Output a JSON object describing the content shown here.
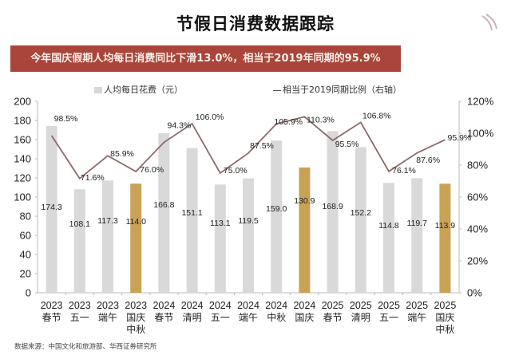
{
  "chart_data": {
    "type": "bar",
    "title": "节假日消费数据跟踪",
    "subtitle": "今年国庆假期人均每日消费同比下滑13.0%，相当于2019年同期的95.9%",
    "categories": [
      [
        "2023",
        "春节"
      ],
      [
        "2023",
        "五一"
      ],
      [
        "2023",
        "端午"
      ],
      [
        "2023",
        "国庆",
        "中秋"
      ],
      [
        "2024",
        "春节"
      ],
      [
        "2024",
        "清明"
      ],
      [
        "2024",
        "五一"
      ],
      [
        "2024",
        "端午"
      ],
      [
        "2024",
        "中秋"
      ],
      [
        "2024",
        "国庆"
      ],
      [
        "2025",
        "春节"
      ],
      [
        "2025",
        "清明"
      ],
      [
        "2025",
        "五一"
      ],
      [
        "2025",
        "端午"
      ],
      [
        "2025",
        "国庆",
        "中秋"
      ]
    ],
    "series": [
      {
        "name": "人均每日花费（元）",
        "type": "bar",
        "axis": "left",
        "values": [
          174.3,
          108.1,
          117.3,
          114.0,
          166.8,
          151.1,
          113.1,
          119.5,
          159.0,
          130.9,
          168.9,
          152.2,
          114.8,
          119.7,
          113.9
        ],
        "labels": [
          "174.3",
          "108.1",
          "117.3",
          "114.0",
          "166.8",
          "151.1",
          "113.1",
          "119.5",
          "159.0",
          "130.9",
          "168.9",
          "152.2",
          "114.8",
          "119.7",
          "113.9"
        ],
        "highlight": [
          false,
          false,
          false,
          true,
          false,
          false,
          false,
          false,
          false,
          true,
          false,
          false,
          false,
          false,
          true
        ]
      },
      {
        "name": "相当于2019同期比例（右轴）",
        "type": "line",
        "axis": "right",
        "values": [
          98.5,
          71.6,
          85.9,
          76.0,
          94.3,
          106.0,
          75.0,
          87.5,
          105.9,
          110.3,
          95.5,
          106.8,
          76.1,
          87.6,
          95.9
        ],
        "labels": [
          "98.5%",
          "71.6%",
          "85.9%",
          "76.0%",
          "94.3%",
          "106.0%",
          "75.0%",
          "87.5%",
          "105.9%",
          "110.3%",
          "95.5%",
          "106.8%",
          "76.1%",
          "87.6%",
          "95.9%"
        ]
      }
    ],
    "ylim_left": [
      0,
      200
    ],
    "yticks_left": [
      "0",
      "20",
      "40",
      "60",
      "80",
      "100",
      "120",
      "140",
      "160",
      "180",
      "200"
    ],
    "ylim_right": [
      0,
      120
    ],
    "yticks_right": [
      "0%",
      "20%",
      "40%",
      "60%",
      "80%",
      "100%",
      "120%"
    ],
    "grid": false,
    "legend": "top",
    "colors": {
      "bar": "#d9d9d9",
      "bar_highlight": "#c9a256",
      "line": "#8b6b68",
      "banner": "#a9453a"
    }
  },
  "source": "数据来源：中国文化和旅游部、华西证券研究所"
}
